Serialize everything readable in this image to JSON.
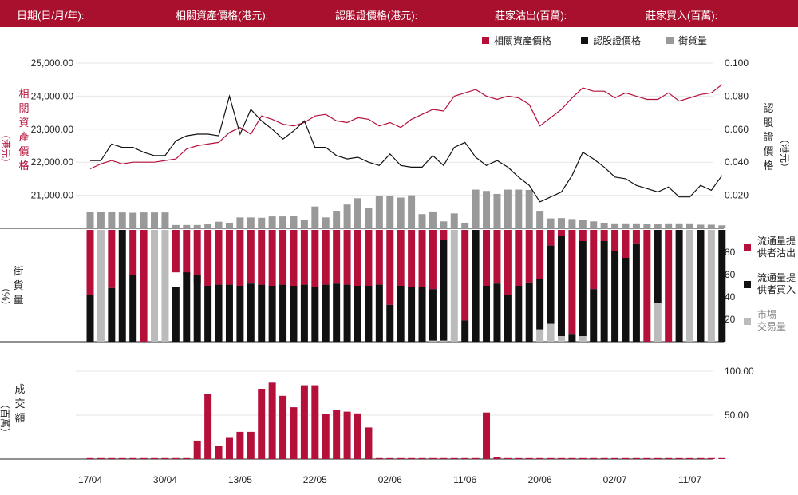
{
  "header": {
    "date_label": "日期(日/月/年):",
    "underlying_label": "相關資產價格(港元):",
    "warrant_label": "認股證價格(港元):",
    "sell_label": "莊家沽出(百萬):",
    "buy_label": "莊家買入(百萬):"
  },
  "colors": {
    "underlying": "#b5103a",
    "warrant": "#111111",
    "outstanding": "#999999",
    "market": "#bbbbbb",
    "volume": "#b5103a"
  },
  "chart_data": [
    {
      "type": "line",
      "panel": "price",
      "legend": [
        "相關資產價格",
        "認股證價格",
        "街貨量"
      ],
      "legend_placement": "top-right",
      "y_left_label": [
        "相",
        "關",
        "資",
        "產",
        "價",
        "格",
        "（港元）"
      ],
      "y_right_label": [
        "認",
        "股",
        "證",
        "價",
        "格",
        "（港元）"
      ],
      "y_left_ticks": [
        "25,000.00",
        "24,000.00",
        "23,000.00",
        "22,000.00",
        "21,000.00"
      ],
      "y_left_range": [
        20000,
        25000
      ],
      "y_right_ticks": [
        "0.100",
        "0.080",
        "0.060",
        "0.040",
        "0.020"
      ],
      "y_right_range": [
        0.0,
        0.1
      ],
      "x_tick_labels": [
        "17/04",
        "30/04",
        "13/05",
        "22/05",
        "02/06",
        "11/06",
        "20/06",
        "02/07",
        "11/07"
      ],
      "x_tick_index": [
        0,
        7,
        14,
        21,
        28,
        35,
        42,
        49,
        56
      ],
      "underlying": [
        21800,
        21950,
        22050,
        21950,
        22000,
        22000,
        22000,
        22050,
        22100,
        22400,
        22500,
        22550,
        22600,
        22900,
        23050,
        22850,
        23400,
        23300,
        23150,
        23100,
        23200,
        23400,
        23450,
        23250,
        23200,
        23350,
        23300,
        23100,
        23200,
        23050,
        23300,
        23450,
        23600,
        23550,
        24000,
        24100,
        24200,
        24000,
        23900,
        24000,
        23950,
        23750,
        23100,
        23350,
        23600,
        23950,
        24250,
        24150,
        24150,
        23950,
        24100,
        24000,
        23900,
        23900,
        24100,
        23850,
        23950,
        24050,
        24100,
        24350
      ],
      "warrant": [
        0.041,
        0.041,
        0.051,
        0.049,
        0.049,
        0.046,
        0.044,
        0.044,
        0.053,
        0.056,
        0.057,
        0.057,
        0.056,
        0.08,
        0.057,
        0.072,
        0.065,
        0.06,
        0.054,
        0.059,
        0.065,
        0.049,
        0.049,
        0.044,
        0.042,
        0.043,
        0.04,
        0.038,
        0.045,
        0.038,
        0.037,
        0.037,
        0.044,
        0.038,
        0.049,
        0.052,
        0.043,
        0.038,
        0.041,
        0.037,
        0.031,
        0.026,
        0.016,
        0.019,
        0.022,
        0.032,
        0.046,
        0.042,
        0.037,
        0.031,
        0.03,
        0.026,
        0.024,
        0.022,
        0.025,
        0.019,
        0.019,
        0.026,
        0.023,
        0.032
      ]
    },
    {
      "type": "bar",
      "panel": "outstanding",
      "legend": "街貨量",
      "values": [
        0.49,
        0.49,
        0.49,
        0.48,
        0.47,
        0.48,
        0.48,
        0.48,
        0.1,
        0.1,
        0.1,
        0.12,
        0.2,
        0.17,
        0.33,
        0.33,
        0.32,
        0.36,
        0.36,
        0.38,
        0.25,
        0.66,
        0.33,
        0.53,
        0.72,
        0.91,
        0.62,
        0.99,
        0.99,
        0.93,
        1.0,
        0.43,
        0.51,
        0.21,
        0.45,
        0.17,
        1.17,
        1.13,
        1.04,
        1.17,
        1.17,
        1.16,
        0.53,
        0.3,
        0.31,
        0.28,
        0.26,
        0.21,
        0.17,
        0.15,
        0.15,
        0.15,
        0.12,
        0.12,
        0.15,
        0.15,
        0.15,
        0.11,
        0.11,
        0.09
      ],
      "value_scale": "fraction of left-axis span 0-5000"
    },
    {
      "type": "bar",
      "panel": "percentage",
      "y_label": [
        "街",
        "貨",
        "量",
        "（%）"
      ],
      "y_ticks": [
        "80",
        "60",
        "40",
        "20"
      ],
      "y_range": [
        0,
        100
      ],
      "legend": [
        "流通量提供者沽出",
        "流通量提供者買入",
        "市場交易量"
      ],
      "legend_lines": [
        [
          "流通量提",
          "供者沽出"
        ],
        [
          "流通量提",
          "供者買入"
        ],
        [
          "市場",
          "交易量"
        ]
      ],
      "legend_placement": "right",
      "sell_pct": [
        58,
        0,
        52,
        0,
        40,
        100,
        0,
        0,
        38,
        40,
        48,
        50,
        49,
        49,
        50,
        48,
        49,
        50,
        49,
        50,
        49,
        51,
        49,
        48,
        49,
        50,
        50,
        49,
        67,
        50,
        51,
        51,
        53,
        9,
        0,
        81,
        0,
        50,
        48,
        58,
        50,
        47,
        44,
        14,
        5,
        93,
        10,
        53,
        10,
        19,
        25,
        12,
        100,
        0,
        100,
        0,
        0,
        100,
        0,
        0
      ],
      "buy_pct": [
        42,
        0,
        48,
        100,
        60,
        0,
        0,
        0,
        49,
        62,
        60,
        50,
        51,
        51,
        50,
        52,
        51,
        50,
        51,
        50,
        51,
        49,
        51,
        52,
        51,
        50,
        50,
        51,
        33,
        50,
        49,
        49,
        46,
        90,
        0,
        19,
        100,
        50,
        52,
        42,
        50,
        53,
        45,
        70,
        90,
        7,
        85,
        47,
        90,
        81,
        75,
        88,
        0,
        65,
        0,
        100,
        0,
        100,
        0,
        100
      ],
      "market_pct": [
        0,
        100,
        0,
        0,
        0,
        0,
        100,
        100,
        0,
        0,
        0,
        0,
        0,
        0,
        0,
        0,
        0,
        0,
        0,
        0,
        0,
        0,
        0,
        0,
        0,
        0,
        0,
        0,
        0,
        0,
        0,
        0,
        1,
        1,
        100,
        0,
        0,
        0,
        0,
        0,
        0,
        0,
        11,
        16,
        5,
        0,
        5,
        0,
        0,
        0,
        0,
        0,
        0,
        35,
        0,
        0,
        100,
        0,
        100,
        0
      ]
    },
    {
      "type": "bar",
      "panel": "turnover",
      "y_label": [
        "成",
        "交",
        "額",
        "（百萬）"
      ],
      "y_ticks": [
        "100.00",
        "50.00"
      ],
      "y_range": [
        0,
        100
      ],
      "values": [
        1,
        0,
        1,
        1,
        1,
        1,
        0,
        1,
        1,
        1,
        21,
        74,
        15,
        25,
        31,
        31,
        80,
        87,
        72,
        59,
        84,
        84,
        51,
        56,
        54,
        52,
        36,
        1,
        1,
        1,
        1,
        1,
        1,
        1,
        1,
        1,
        1,
        53,
        2,
        1,
        1,
        1,
        1,
        1,
        1,
        1,
        1,
        1,
        1,
        1,
        1,
        1,
        1,
        1,
        1,
        1,
        1,
        1,
        1,
        1
      ]
    }
  ]
}
